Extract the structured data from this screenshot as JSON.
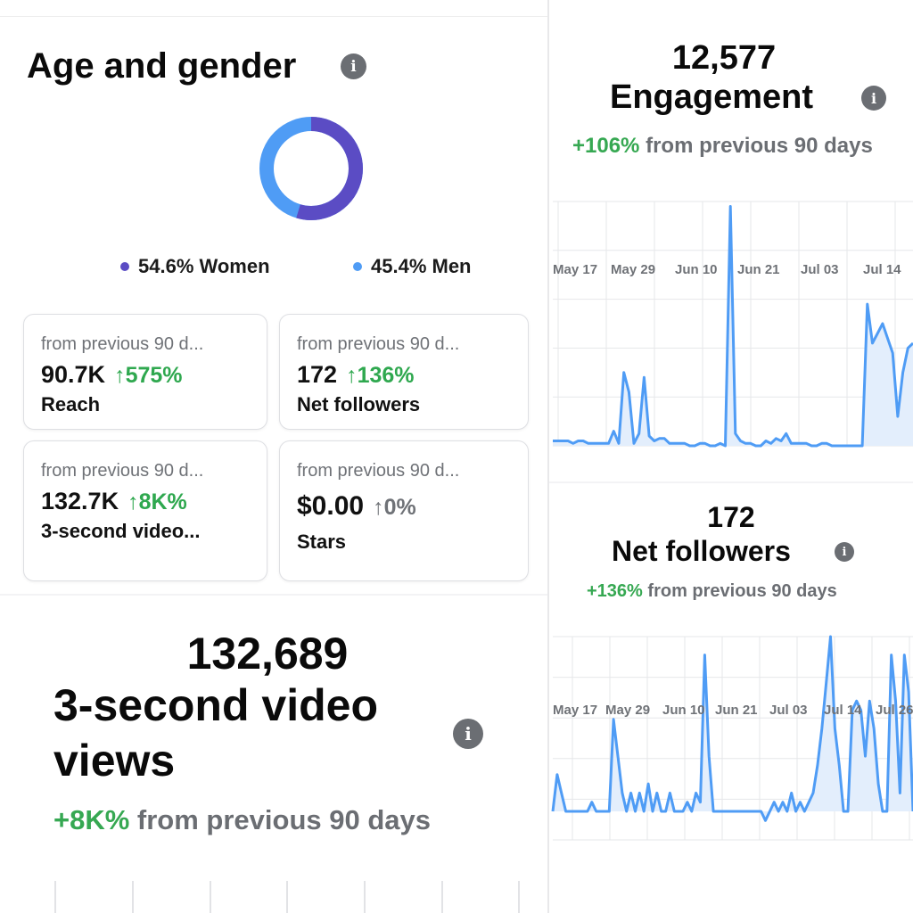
{
  "age_gender": {
    "title": "Age and gender",
    "info_icon": "info-icon",
    "women_label": "54.6% Women",
    "men_label": "45.4% Men",
    "women_color": "#5b4cc4",
    "men_color": "#4f9cf5",
    "women_pct": 54.6,
    "men_pct": 45.4
  },
  "cards": [
    {
      "sub": "from previous 90 d...",
      "value": "90.7K",
      "change": "↑575%",
      "label": "Reach"
    },
    {
      "sub": "from previous 90 d...",
      "value": "172",
      "change": "↑136%",
      "label": "Net followers"
    },
    {
      "sub": "from previous 90 d...",
      "value": "132.7K",
      "change": "↑8K%",
      "label": "3-second video..."
    },
    {
      "sub": "from previous 90 d...",
      "value": "$0.00",
      "change": "↑0%",
      "label": "Stars"
    }
  ],
  "video_views": {
    "value": "132,689",
    "title_line1": "3-second video",
    "title_line2": "views",
    "change": "+8K%",
    "change_text": "from previous 90 days"
  },
  "engagement": {
    "value": "12,577",
    "title": "Engagement",
    "change": "+106%",
    "change_text": "from previous 90 days"
  },
  "net_followers": {
    "value": "172",
    "title": "Net followers",
    "change": "+136%",
    "change_text": "from previous 90 days"
  },
  "colors": {
    "line": "#4f9cf5",
    "fill": "#e3eefc",
    "green": "#36a852",
    "grey_text": "#6b6e73"
  },
  "chart_data": [
    {
      "type": "area",
      "x_ticks": [
        "May 17",
        "May 29",
        "Jun 10",
        "Jun 21",
        "Jul 03",
        "Jul 14"
      ],
      "values": [
        2,
        2,
        2,
        2,
        1,
        2,
        2,
        1,
        1,
        1,
        1,
        1,
        6,
        1,
        30,
        22,
        1,
        5,
        28,
        4,
        2,
        3,
        3,
        1,
        1,
        1,
        1,
        0,
        0,
        1,
        1,
        0,
        0,
        1,
        0,
        98,
        5,
        2,
        1,
        1,
        0,
        0,
        2,
        1,
        3,
        2,
        5,
        1,
        1,
        1,
        1,
        0,
        0,
        1,
        1,
        0,
        0,
        0,
        0,
        0,
        0,
        0,
        58,
        42,
        46,
        50,
        44,
        38,
        12,
        30,
        40,
        42
      ],
      "grid": true
    },
    {
      "type": "area",
      "x_ticks": [
        "May 17",
        "May 29",
        "Jun 10",
        "Jun 21",
        "Jul 03",
        "Jul 14",
        "Jul 26"
      ],
      "values": [
        0,
        4,
        2,
        0,
        0,
        0,
        0,
        0,
        0,
        1,
        0,
        0,
        0,
        0,
        10,
        6,
        2,
        0,
        2,
        0,
        2,
        0,
        3,
        0,
        2,
        0,
        0,
        2,
        0,
        0,
        0,
        1,
        0,
        2,
        1,
        17,
        6,
        0,
        0,
        0,
        0,
        0,
        0,
        0,
        0,
        0,
        0,
        0,
        0,
        -1,
        0,
        1,
        0,
        1,
        0,
        2,
        0,
        1,
        0,
        1,
        2,
        5,
        9,
        14,
        19,
        9,
        5,
        0,
        0,
        11,
        12,
        11,
        6,
        12,
        9,
        3,
        0,
        0,
        17,
        12,
        2,
        17,
        13,
        0
      ],
      "grid": true
    }
  ]
}
